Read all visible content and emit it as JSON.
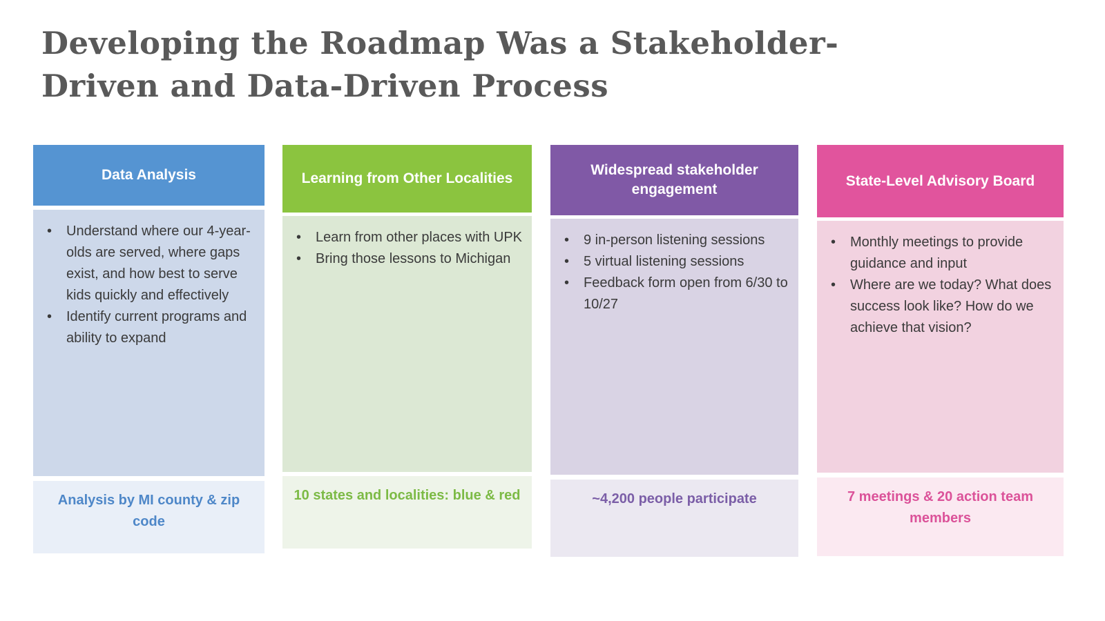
{
  "slide": {
    "title_line1": "Developing the Roadmap Was a Stakeholder-",
    "title_line2": "Driven and Data-Driven Process",
    "title_color": "#595959",
    "background": "#ffffff"
  },
  "columns": [
    {
      "header": "Data Analysis",
      "bullets": [
        "Understand where our 4-year-olds are served, where gaps exist, and how best to serve kids quickly and effectively",
        "Identify current programs and ability to expand"
      ],
      "footer": "Analysis by MI county & zip code",
      "colors": {
        "header_bg": "#5594d2",
        "body_bg": "#cdd8ea",
        "footer_bg": "#e9eff8",
        "footer_text": "#4e87c8"
      }
    },
    {
      "header": "Learning from Other Localities",
      "bullets": [
        "Learn from other places with UPK",
        "Bring those lessons to Michigan"
      ],
      "footer": "10 states and localities: blue & red",
      "colors": {
        "header_bg": "#8bc43f",
        "body_bg": "#dce8d4",
        "footer_bg": "#eef4e9",
        "footer_text": "#7cba45"
      }
    },
    {
      "header": "Widespread stakeholder engagement",
      "bullets": [
        "9 in-person listening sessions",
        "5 virtual listening sessions",
        "Feedback form open from 6/30 to 10/27"
      ],
      "footer": "~4,200 people participate",
      "colors": {
        "header_bg": "#8059a6",
        "body_bg": "#d9d3e4",
        "footer_bg": "#ebe8f1",
        "footer_text": "#7b5ea7"
      }
    },
    {
      "header": "State-Level Advisory Board",
      "bullets": [
        "Monthly meetings to provide guidance and input",
        "Where are we today? What does success look like? How do we achieve that vision?"
      ],
      "footer": "7 meetings & 20 action team members",
      "colors": {
        "header_bg": "#e1549d",
        "body_bg": "#f2d2e0",
        "footer_bg": "#fbe9f1",
        "footer_text": "#db5299"
      }
    }
  ]
}
